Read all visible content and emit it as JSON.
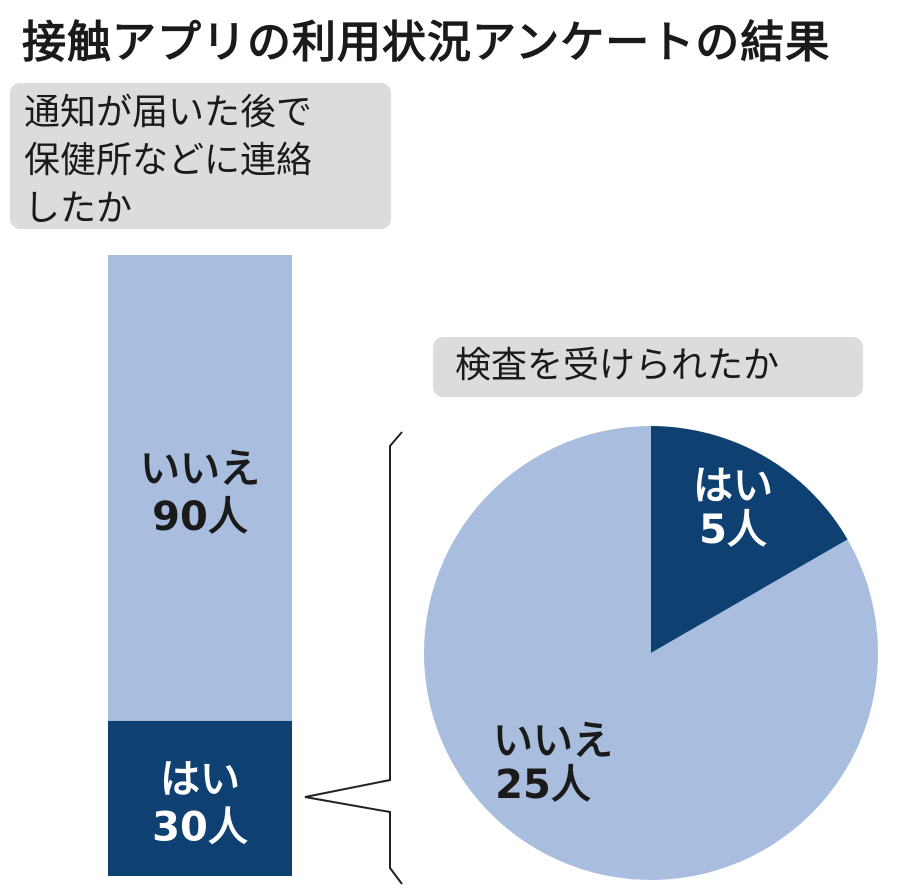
{
  "title": "接触アプリの利用状況アンケートの結果",
  "colors": {
    "light": "#a9bede",
    "dark": "#0e4071",
    "panel": "#dcdcdc",
    "text": "#1a1a1a"
  },
  "chart_data": [
    {
      "type": "bar",
      "stacked": true,
      "title_lines": [
        "通知が届いた後で",
        "保健所などに連絡",
        "したか"
      ],
      "segments": [
        {
          "label": "はい",
          "value": 30,
          "value_text": "30人",
          "color": "dark"
        },
        {
          "label": "いいえ",
          "value": 90,
          "value_text": "90人",
          "color": "light"
        }
      ]
    },
    {
      "type": "pie",
      "title": "検査を受けられたか",
      "slices": [
        {
          "label": "はい",
          "value": 5,
          "value_text": "5人",
          "color": "dark"
        },
        {
          "label": "いいえ",
          "value": 25,
          "value_text": "25人",
          "color": "light"
        }
      ]
    }
  ]
}
